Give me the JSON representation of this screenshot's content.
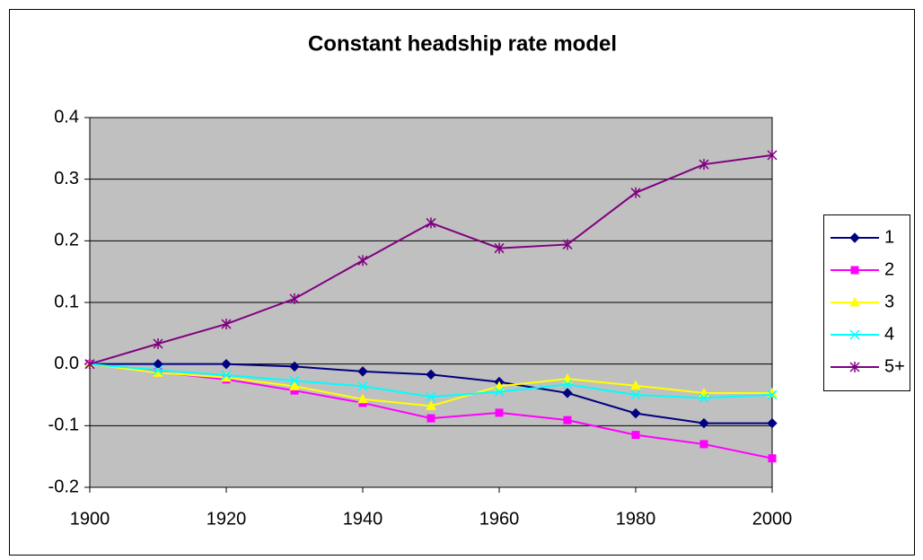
{
  "chart_data": {
    "type": "line",
    "title": "Constant headship rate model",
    "x": [
      1900,
      1910,
      1920,
      1930,
      1940,
      1950,
      1960,
      1970,
      1980,
      1990,
      2000
    ],
    "series": [
      {
        "name": "1",
        "color": "#000080",
        "marker": "diamond",
        "values": [
          0,
          0,
          0,
          -0.004,
          -0.012,
          -0.017,
          -0.029,
          -0.047,
          -0.08,
          -0.096,
          -0.096
        ]
      },
      {
        "name": "2",
        "color": "#ff00ff",
        "marker": "square",
        "values": [
          0,
          -0.013,
          -0.025,
          -0.043,
          -0.063,
          -0.088,
          -0.079,
          -0.091,
          -0.115,
          -0.13,
          -0.153
        ]
      },
      {
        "name": "3",
        "color": "#ffff00",
        "marker": "triangle",
        "values": [
          0,
          -0.014,
          -0.022,
          -0.036,
          -0.057,
          -0.068,
          -0.036,
          -0.024,
          -0.035,
          -0.047,
          -0.047
        ]
      },
      {
        "name": "4",
        "color": "#00ffff",
        "marker": "x",
        "values": [
          0,
          -0.01,
          -0.018,
          -0.027,
          -0.036,
          -0.053,
          -0.045,
          -0.033,
          -0.05,
          -0.055,
          -0.05
        ]
      },
      {
        "name": "5+",
        "color": "#800080",
        "marker": "star",
        "values": [
          0,
          0.033,
          0.065,
          0.106,
          0.168,
          0.229,
          0.188,
          0.194,
          0.278,
          0.324,
          0.339
        ]
      }
    ],
    "xlim": [
      1900,
      2000
    ],
    "xticks": [
      1900,
      1920,
      1940,
      1960,
      1980,
      2000
    ],
    "ylim": [
      -0.2,
      0.4
    ],
    "yticks": [
      -0.2,
      -0.1,
      {
        "value": 0,
        "label": "0.0"
      },
      0.1,
      0.2,
      0.3,
      0.4
    ],
    "grid": true,
    "plot_background": "#c0c0c0",
    "legend": "right"
  }
}
